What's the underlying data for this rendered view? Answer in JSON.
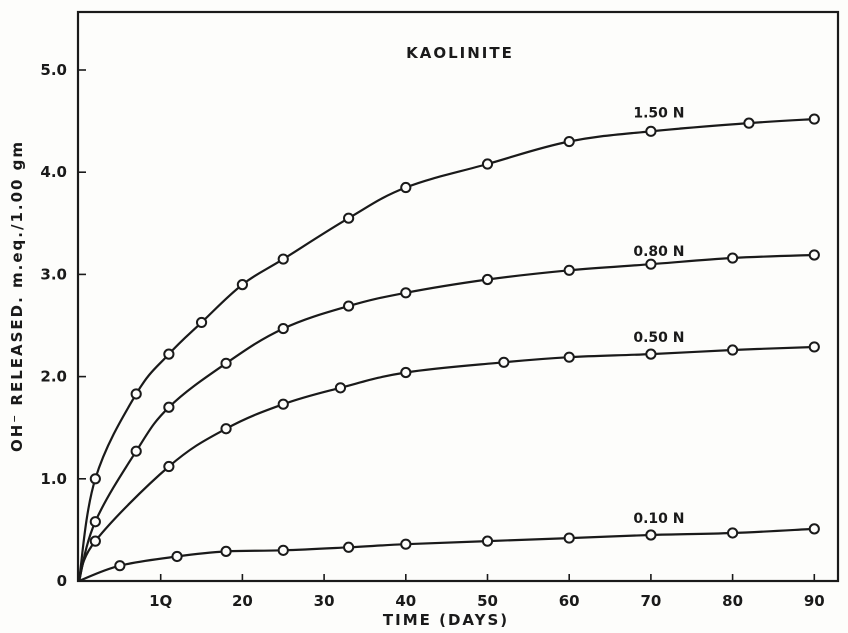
{
  "chart_data": {
    "type": "line",
    "title": "KAOLINITE",
    "xlabel": "TIME (DAYS)",
    "ylabel": "OH⁻ RELEASED.   m.eq./1.00 gm",
    "xlim": [
      0,
      92
    ],
    "ylim": [
      0,
      5.6
    ],
    "x_ticks": [
      {
        "value": 10,
        "label": "1Q"
      },
      {
        "value": 20,
        "label": "20"
      },
      {
        "value": 30,
        "label": "30"
      },
      {
        "value": 40,
        "label": "40"
      },
      {
        "value": 50,
        "label": "50"
      },
      {
        "value": 60,
        "label": "60"
      },
      {
        "value": 70,
        "label": "70"
      },
      {
        "value": 80,
        "label": "80"
      },
      {
        "value": 90,
        "label": "90"
      }
    ],
    "y_ticks": [
      {
        "value": 0,
        "label": "0"
      },
      {
        "value": 1,
        "label": "1.0"
      },
      {
        "value": 2,
        "label": "2.0"
      },
      {
        "value": 3,
        "label": "3.0"
      },
      {
        "value": 4,
        "label": "4.0"
      },
      {
        "value": 5,
        "label": "5.0"
      }
    ],
    "grid": false,
    "legend": "none",
    "series": [
      {
        "name": "1.50 N",
        "x": [
          0,
          2,
          7,
          11,
          15,
          20,
          25,
          33,
          40,
          50,
          60,
          70,
          82,
          90
        ],
        "y": [
          0,
          1.0,
          1.83,
          2.22,
          2.53,
          2.9,
          3.15,
          3.55,
          3.85,
          4.08,
          4.3,
          4.4,
          4.48,
          4.52
        ]
      },
      {
        "name": "0.80 N",
        "x": [
          0,
          2,
          7,
          11,
          18,
          25,
          33,
          40,
          50,
          60,
          70,
          80,
          90
        ],
        "y": [
          0,
          0.58,
          1.27,
          1.7,
          2.13,
          2.47,
          2.69,
          2.82,
          2.95,
          3.04,
          3.1,
          3.16,
          3.19
        ]
      },
      {
        "name": "0.50 N",
        "x": [
          0,
          2,
          11,
          18,
          25,
          32,
          40,
          52,
          60,
          70,
          80,
          90
        ],
        "y": [
          0,
          0.39,
          1.12,
          1.49,
          1.73,
          1.89,
          2.04,
          2.14,
          2.19,
          2.22,
          2.26,
          2.29
        ]
      },
      {
        "name": "0.10 N",
        "x": [
          0,
          5,
          12,
          18,
          25,
          33,
          40,
          50,
          60,
          70,
          80,
          90
        ],
        "y": [
          0,
          0.15,
          0.24,
          0.29,
          0.3,
          0.33,
          0.36,
          0.39,
          0.42,
          0.45,
          0.47,
          0.51
        ]
      }
    ]
  }
}
